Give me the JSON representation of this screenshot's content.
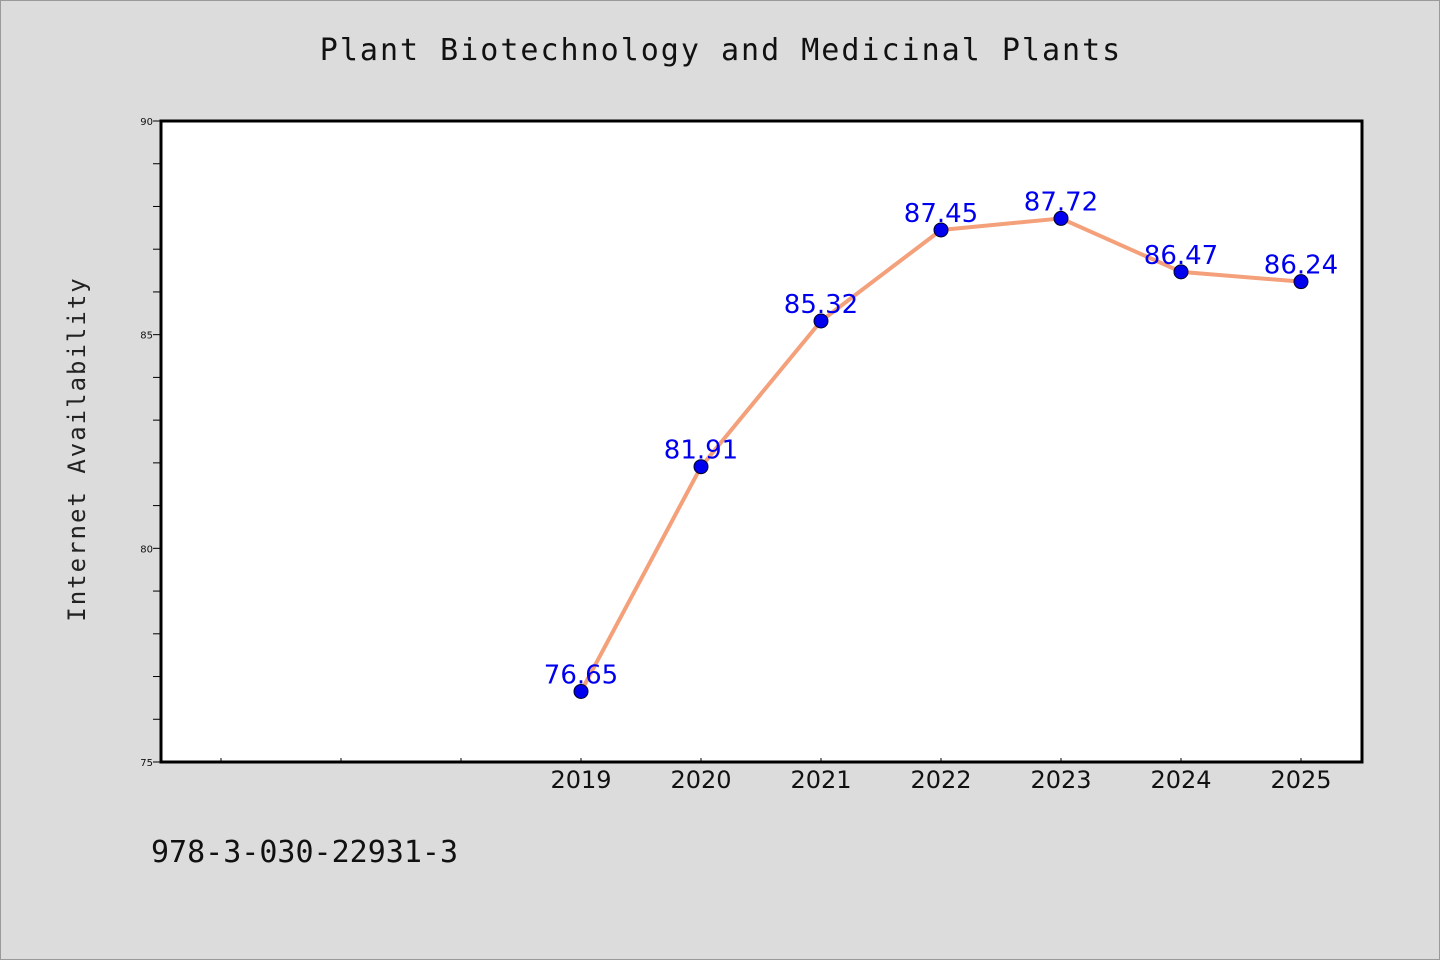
{
  "chart_data": {
    "type": "line",
    "title": "Plant Biotechnology and Medicinal Plants",
    "xlabel": "",
    "ylabel": "Internet Availability",
    "x": [
      "2019",
      "2020",
      "2021",
      "2022",
      "2023",
      "2024",
      "2025"
    ],
    "series": [
      {
        "values": [
          76.65,
          81.91,
          85.32,
          87.45,
          87.72,
          86.47,
          86.24
        ],
        "labels": [
          "76.65",
          "81.91",
          "85.32",
          "87.45",
          "87.72",
          "86.47",
          "86.24"
        ],
        "line_color": "#f4a07a",
        "marker_color": "#0000ee",
        "label_color": "#0000ee"
      }
    ],
    "ylim": [
      75,
      90
    ],
    "yticks": [
      "75",
      "80",
      "85",
      "90"
    ],
    "x_slots": 10,
    "x_first_slot": 3,
    "grid": false,
    "legend": "none"
  },
  "footer": {
    "code": "978-3-030-22931-3"
  }
}
